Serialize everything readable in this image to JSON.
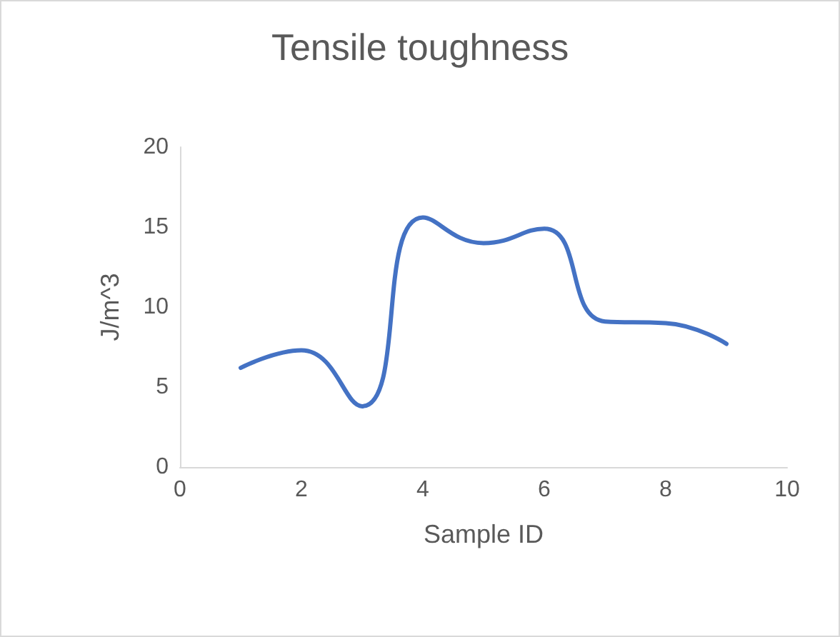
{
  "chart_data": {
    "type": "line",
    "title": "Tensile toughness",
    "xlabel": "Sample ID",
    "ylabel": "J/m^3",
    "x": [
      1,
      2,
      3,
      4,
      5,
      6,
      7,
      8,
      9
    ],
    "series": [
      {
        "color": "#4472c4",
        "values": [
          6.2,
          7.3,
          3.8,
          15.6,
          14.0,
          14.9,
          9.1,
          9.0,
          7.7
        ]
      }
    ],
    "xlim": [
      0,
      10
    ],
    "xticks": [
      0,
      2,
      4,
      6,
      8,
      10
    ],
    "ylim": [
      0,
      20
    ],
    "yticks": [
      0,
      5,
      10,
      15,
      20
    ],
    "grid": false,
    "marker": "none",
    "line_style": "solid"
  }
}
